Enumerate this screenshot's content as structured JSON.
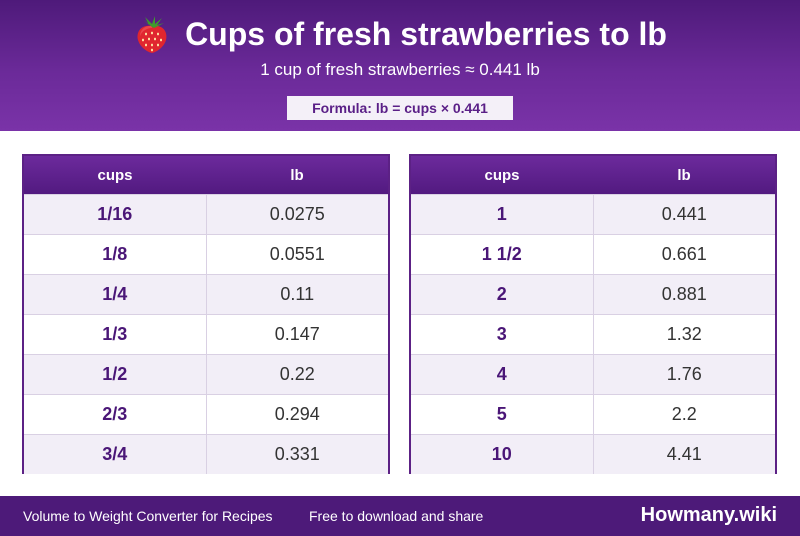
{
  "header": {
    "title": "Cups of fresh strawberries to lb",
    "subtitle": "1 cup of fresh strawberries ≈ 0.441 lb",
    "formula": "Formula: lb = cups × 0.441",
    "icon": "strawberry-icon"
  },
  "tables": [
    {
      "col1": "cups",
      "col2": "lb",
      "rows": [
        {
          "cups": "1/16",
          "lb": "0.0275"
        },
        {
          "cups": "1/8",
          "lb": "0.0551"
        },
        {
          "cups": "1/4",
          "lb": "0.11"
        },
        {
          "cups": "1/3",
          "lb": "0.147"
        },
        {
          "cups": "1/2",
          "lb": "0.22"
        },
        {
          "cups": "2/3",
          "lb": "0.294"
        },
        {
          "cups": "3/4",
          "lb": "0.331"
        }
      ]
    },
    {
      "col1": "cups",
      "col2": "lb",
      "rows": [
        {
          "cups": "1",
          "lb": "0.441"
        },
        {
          "cups": "1 1/2",
          "lb": "0.661"
        },
        {
          "cups": "2",
          "lb": "0.881"
        },
        {
          "cups": "3",
          "lb": "1.32"
        },
        {
          "cups": "4",
          "lb": "1.76"
        },
        {
          "cups": "5",
          "lb": "2.2"
        },
        {
          "cups": "10",
          "lb": "4.41"
        }
      ]
    }
  ],
  "footer": {
    "left_text": "Volume to Weight Converter for Recipes",
    "middle_text": "Free to download and share",
    "brand": "Howmany.wiki"
  },
  "colors": {
    "header_purple": "#6b2a99",
    "footer_purple": "#4d1a79",
    "accent_text": "#4a1677",
    "stripe": "#f2eef7"
  }
}
